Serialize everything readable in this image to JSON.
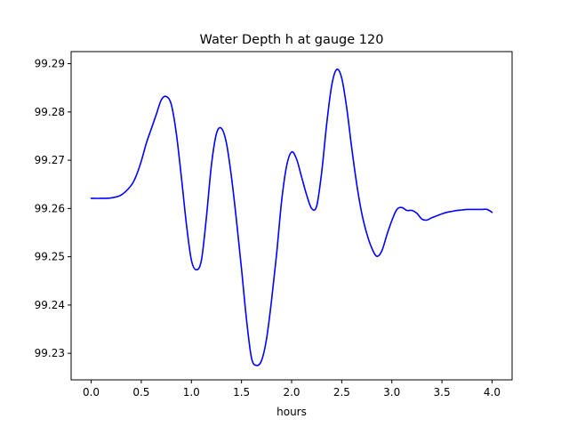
{
  "chart_data": {
    "type": "line",
    "title": "Water Depth h at gauge 120",
    "xlabel": "hours",
    "ylabel": "",
    "xlim": [
      -0.2,
      4.2
    ],
    "ylim": [
      99.2245,
      99.2925
    ],
    "xticks": [
      0.0,
      0.5,
      1.0,
      1.5,
      2.0,
      2.5,
      3.0,
      3.5,
      4.0
    ],
    "xtick_labels": [
      "0.0",
      "0.5",
      "1.0",
      "1.5",
      "2.0",
      "2.5",
      "3.0",
      "3.5",
      "4.0"
    ],
    "yticks": [
      99.23,
      99.24,
      99.25,
      99.26,
      99.27,
      99.28,
      99.29
    ],
    "ytick_labels": [
      "99.23",
      "99.24",
      "99.25",
      "99.26",
      "99.27",
      "99.28",
      "99.29"
    ],
    "grid": false,
    "legend": "none",
    "series": [
      {
        "color": "#0000ff",
        "x": [
          0.0,
          0.1,
          0.2,
          0.3,
          0.4,
          0.45,
          0.5,
          0.55,
          0.6,
          0.65,
          0.7,
          0.75,
          0.8,
          0.85,
          0.9,
          0.95,
          1.0,
          1.05,
          1.1,
          1.15,
          1.2,
          1.25,
          1.3,
          1.35,
          1.4,
          1.45,
          1.5,
          1.55,
          1.6,
          1.65,
          1.7,
          1.75,
          1.8,
          1.85,
          1.9,
          1.95,
          2.0,
          2.05,
          2.1,
          2.15,
          2.2,
          2.25,
          2.3,
          2.35,
          2.4,
          2.45,
          2.5,
          2.55,
          2.6,
          2.65,
          2.7,
          2.75,
          2.8,
          2.85,
          2.9,
          2.95,
          3.0,
          3.05,
          3.1,
          3.15,
          3.2,
          3.25,
          3.3,
          3.35,
          3.4,
          3.45,
          3.5,
          3.55,
          3.6,
          3.65,
          3.7,
          3.75,
          3.8,
          3.85,
          3.9,
          3.95,
          4.0
        ],
        "y": [
          99.2621,
          99.2621,
          99.2622,
          99.2628,
          99.2648,
          99.2668,
          99.2698,
          99.2735,
          99.2765,
          99.2795,
          99.2825,
          99.2832,
          99.2815,
          99.2755,
          99.2665,
          99.2568,
          99.2493,
          99.2473,
          99.2493,
          99.2582,
          99.269,
          99.2755,
          99.2766,
          99.2735,
          99.2665,
          99.2575,
          99.2475,
          99.237,
          99.229,
          99.2275,
          99.2285,
          99.233,
          99.241,
          99.2505,
          99.2615,
          99.2688,
          99.2717,
          99.2702,
          99.2665,
          99.2628,
          99.26,
          99.2605,
          99.2675,
          99.2775,
          99.2855,
          99.2888,
          99.287,
          99.2808,
          99.2725,
          99.265,
          99.259,
          99.2548,
          99.2518,
          99.2501,
          99.2512,
          99.2545,
          99.2575,
          99.2598,
          99.2602,
          99.2596,
          99.2596,
          99.259,
          99.2578,
          99.2576,
          99.2581,
          99.2585,
          99.2589,
          99.2592,
          99.2594,
          99.2596,
          99.2597,
          99.2598,
          99.2598,
          99.2598,
          99.2598,
          99.2598,
          99.2592
        ]
      }
    ]
  }
}
